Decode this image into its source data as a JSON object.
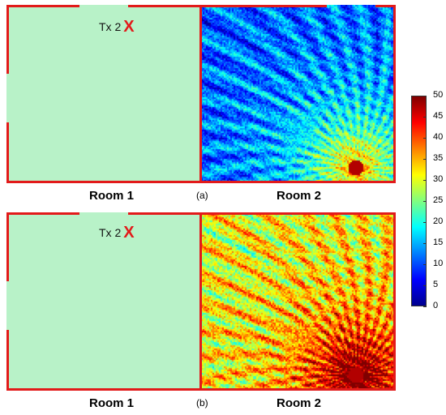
{
  "panel_a": {
    "tx_label": "Tx 2",
    "tx_marker": "X",
    "room1_label": "Room 1",
    "room2_label": "Room 2",
    "sub_label": "(a)"
  },
  "panel_b": {
    "tx_label": "Tx 2",
    "tx_marker": "X",
    "room1_label": "Room 1",
    "room2_label": "Room 2",
    "sub_label": "(b)"
  },
  "colorbar": {
    "ticks": [
      "50",
      "45",
      "40",
      "35",
      "30",
      "25",
      "20",
      "15",
      "10",
      "5",
      "0"
    ],
    "min": 0,
    "max": 50
  },
  "colors": {
    "wall": "#e21a1a",
    "room1_fill": "#b8f2c8"
  }
}
